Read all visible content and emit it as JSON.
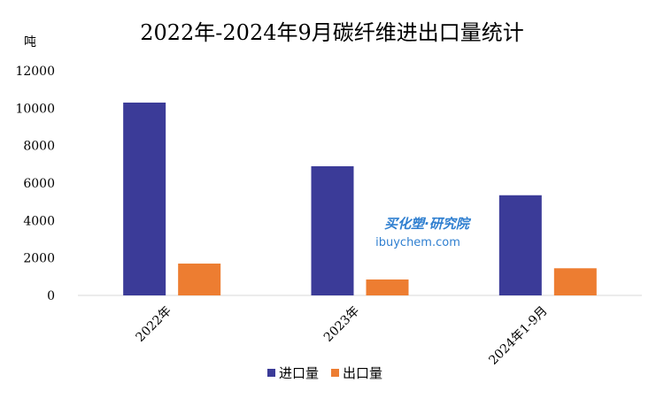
{
  "chart_data": {
    "type": "bar",
    "title": "2022年-2024年9月碳纤维进出口量统计",
    "unit_label": "吨",
    "xlabel": "",
    "ylabel": "",
    "categories": [
      "2022年",
      "2023年",
      "2024年1-9月"
    ],
    "series": [
      {
        "name": "进口量",
        "values": [
          10300,
          6900,
          5350
        ],
        "color": "#3b3b98"
      },
      {
        "name": "出口量",
        "values": [
          1700,
          850,
          1450
        ],
        "color": "#ed7d31"
      }
    ],
    "ylim": [
      0,
      12000
    ],
    "yticks": [
      "0",
      "2000",
      "4000",
      "6000",
      "8000",
      "10000",
      "12000"
    ],
    "grid": false,
    "legend_position": "bottom"
  },
  "watermark": {
    "brand": "买化塑·研究院",
    "site": "ibuychem.com",
    "color": "#2f7fd0"
  }
}
